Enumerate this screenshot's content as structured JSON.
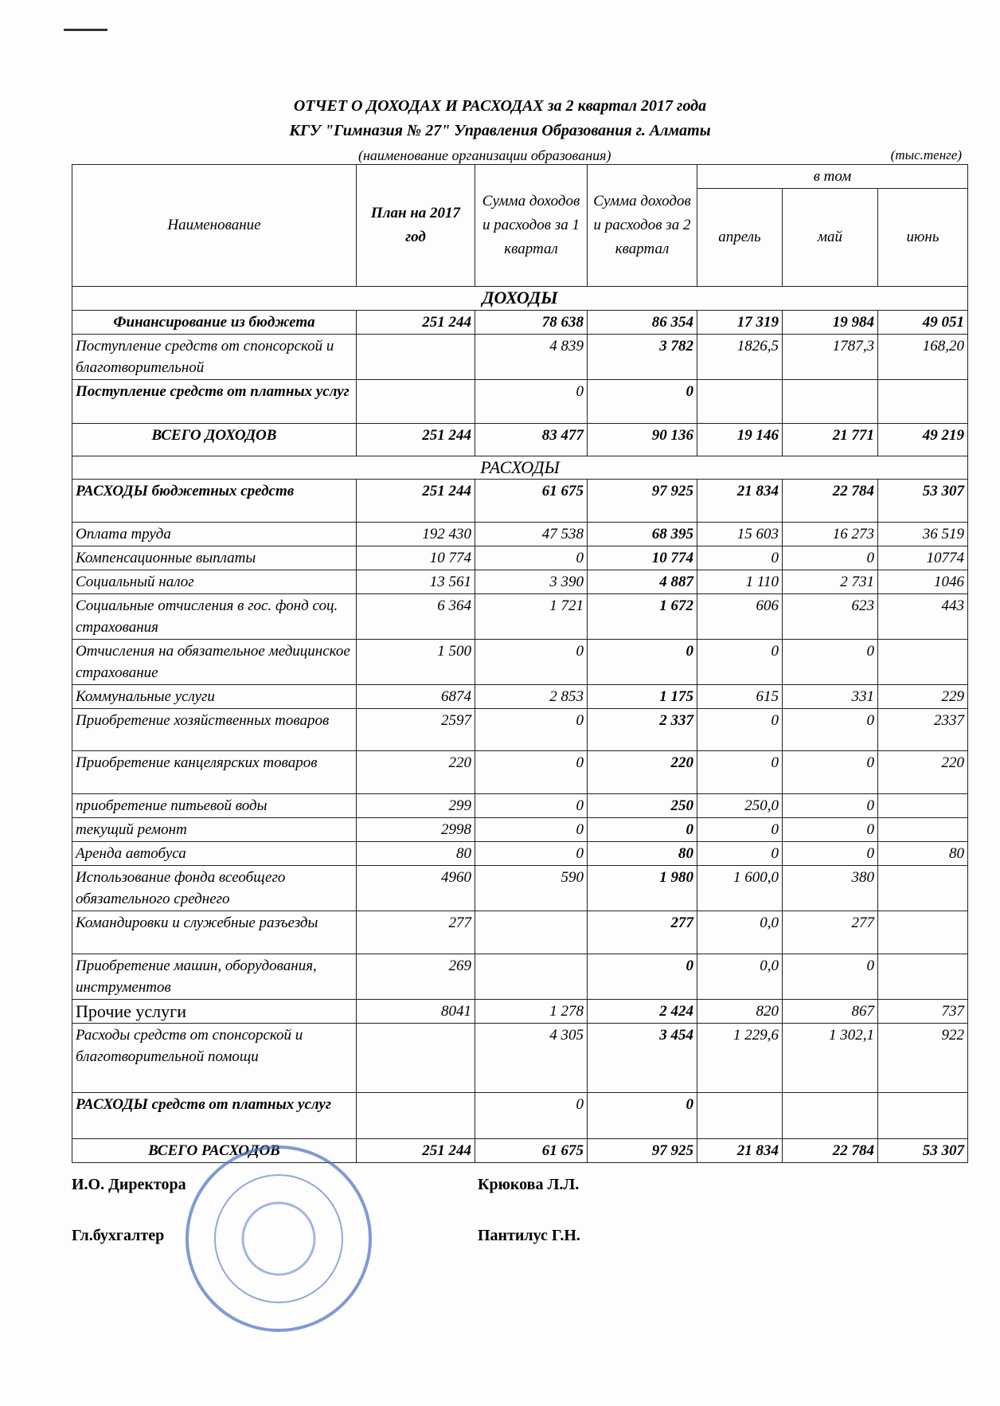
{
  "header": {
    "title": "ОТЧЕТ О ДОХОДАХ И РАСХОДАХ за 2 квартал 2017 года",
    "organization": "КГУ \"Гимназия № 27\" Управления Образования г. Алматы",
    "organization_caption": "(наименование организации образования)",
    "units": "(тыс.тенге)"
  },
  "table": {
    "columns": [
      "Наименование",
      "План на 2017 год",
      "Сумма доходов и расходов за 1 квартал",
      "Сумма доходов и расходов за 2 квартал"
    ],
    "group": "в том",
    "months": [
      "апрель",
      "май",
      "июнь"
    ],
    "income_section": "ДОХОДЫ",
    "income_rows": [
      [
        "Финансирование из бюджета",
        "251 244",
        "78 638",
        "86 354",
        "17 319",
        "19 984",
        "49 051"
      ],
      [
        "Поступление средств от спонсорской и благотворительной",
        null,
        "4 839",
        "3 782",
        "1826,5",
        "1787,3",
        "168,20"
      ],
      [
        "Поступление средств от платных услуг",
        null,
        "0",
        "0",
        null,
        null,
        null
      ],
      [
        "ВСЕГО ДОХОДОВ",
        "251 244",
        "83 477",
        "90 136",
        "19 146",
        "21 771",
        "49 219"
      ]
    ],
    "expense_section": "РАСХОДЫ",
    "expense_rows": [
      [
        "РАСХОДЫ бюджетных средств",
        "251 244",
        "61 675",
        "97 925",
        "21 834",
        "22 784",
        "53 307"
      ],
      [
        "Оплата труда",
        "192 430",
        "47 538",
        "68 395",
        "15 603",
        "16 273",
        "36 519"
      ],
      [
        "Компенсационные выплаты",
        "10 774",
        "0",
        "10 774",
        "0",
        "0",
        "10774"
      ],
      [
        "Социальный налог",
        "13 561",
        "3 390",
        "4 887",
        "1 110",
        "2 731",
        "1046"
      ],
      [
        "Социальные отчисления в гос. фонд соц. страхования",
        "6 364",
        "1 721",
        "1 672",
        "606",
        "623",
        "443"
      ],
      [
        "Отчисления на обязательное медицинское страхование",
        "1 500",
        "0",
        "0",
        "0",
        "0",
        null
      ],
      [
        "Коммунальные услуги",
        "6874",
        "2 853",
        "1 175",
        "615",
        "331",
        "229"
      ],
      [
        "Приобретение хозяйственных товаров",
        "2597",
        "0",
        "2 337",
        "0",
        "0",
        "2337"
      ],
      [
        "Приобретение канцелярских товаров",
        "220",
        "0",
        "220",
        "0",
        "0",
        "220"
      ],
      [
        "приобретение питьевой воды",
        "299",
        "0",
        "250",
        "250,0",
        "0",
        null
      ],
      [
        "текущий ремонт",
        "2998",
        "0",
        "0",
        "0",
        "0",
        null
      ],
      [
        "Аренда автобуса",
        "80",
        "0",
        "80",
        "0",
        "0",
        "80"
      ],
      [
        "Использование фонда всеобщего обязательного среднего",
        "4960",
        "590",
        "1 980",
        "1 600,0",
        "380",
        null
      ],
      [
        "Командировки и служебные разъезды",
        "277",
        null,
        "277",
        "0,0",
        "277",
        null
      ],
      [
        "Приобретение машин, оборудования, инструментов",
        "269",
        null,
        "0",
        "0,0",
        "0",
        null
      ],
      [
        "Прочие услуги",
        "8041",
        "1 278",
        "2 424",
        "820",
        "867",
        "737"
      ],
      [
        "Расходы средств от спонсорской и благотворительной помощи",
        null,
        "4 305",
        "3 454",
        "1 229,6",
        "1 302,1",
        "922"
      ],
      [
        "РАСХОДЫ  средств от платных услуг",
        null,
        "0",
        "0",
        null,
        null,
        null
      ],
      [
        "ВСЕГО РАСХОДОВ",
        "251 244",
        "61 675",
        "97 925",
        "21 834",
        "22 784",
        "53 307"
      ]
    ]
  },
  "signatures": [
    {
      "role": "И.О. Директора",
      "name": "Крюкова Л.Л."
    },
    {
      "role": "Гл.бухгалтер",
      "name": "Пантилус Г.Н."
    }
  ]
}
